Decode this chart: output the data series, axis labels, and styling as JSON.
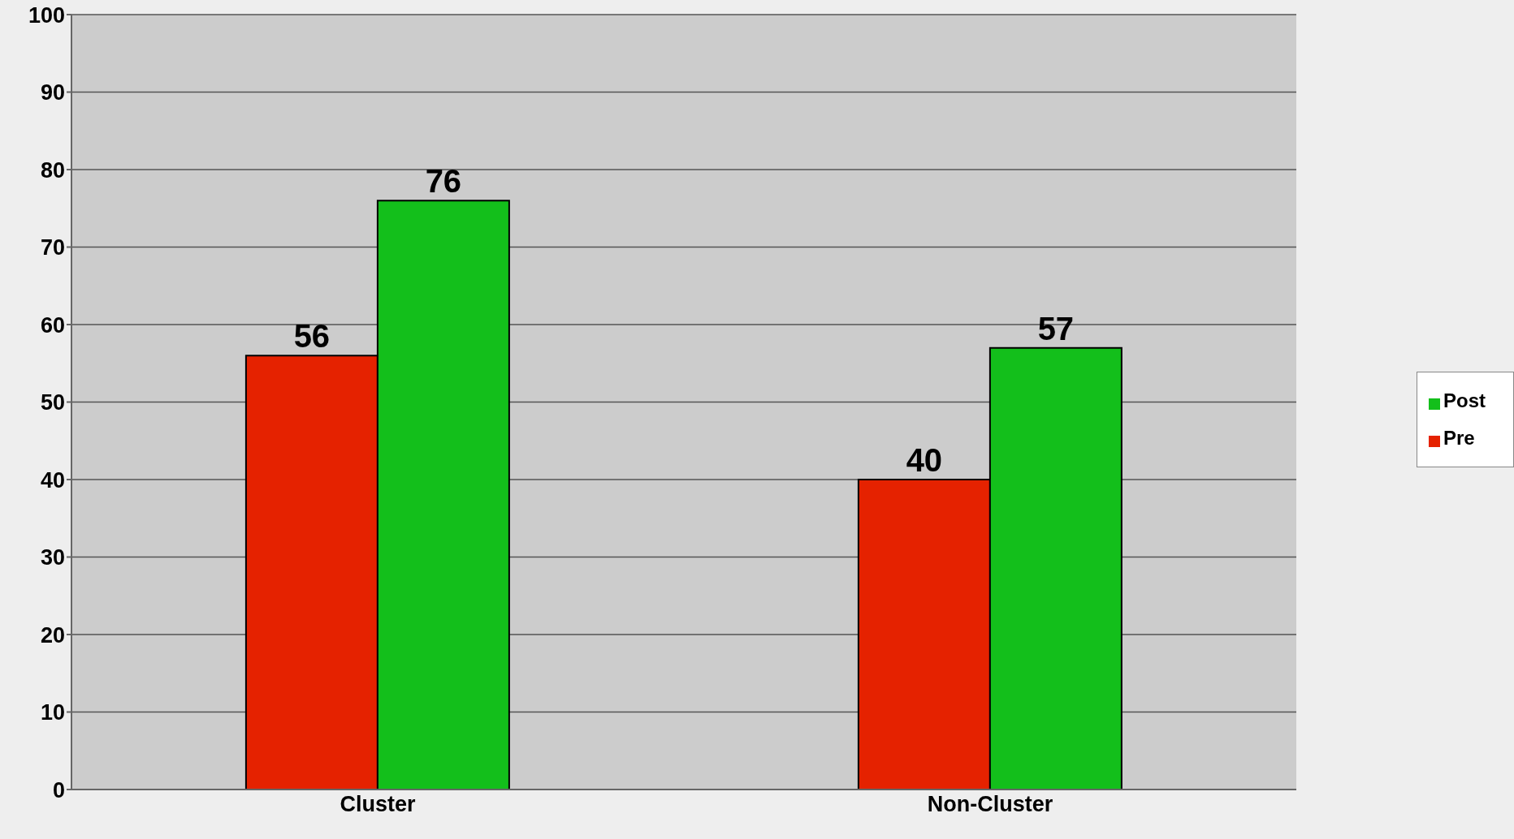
{
  "chart_data": {
    "type": "bar",
    "categories": [
      "Cluster",
      "Non-Cluster"
    ],
    "series": [
      {
        "name": "Pre",
        "color": "#e52200",
        "values": [
          56,
          40
        ]
      },
      {
        "name": "Post",
        "color": "#13bf1b",
        "values": [
          76,
          57
        ]
      }
    ],
    "ylim": [
      0,
      100
    ],
    "yticks": [
      0,
      10,
      20,
      30,
      40,
      50,
      60,
      70,
      80,
      90,
      100
    ],
    "grid": "y",
    "legend": "right",
    "data_labels": true
  }
}
